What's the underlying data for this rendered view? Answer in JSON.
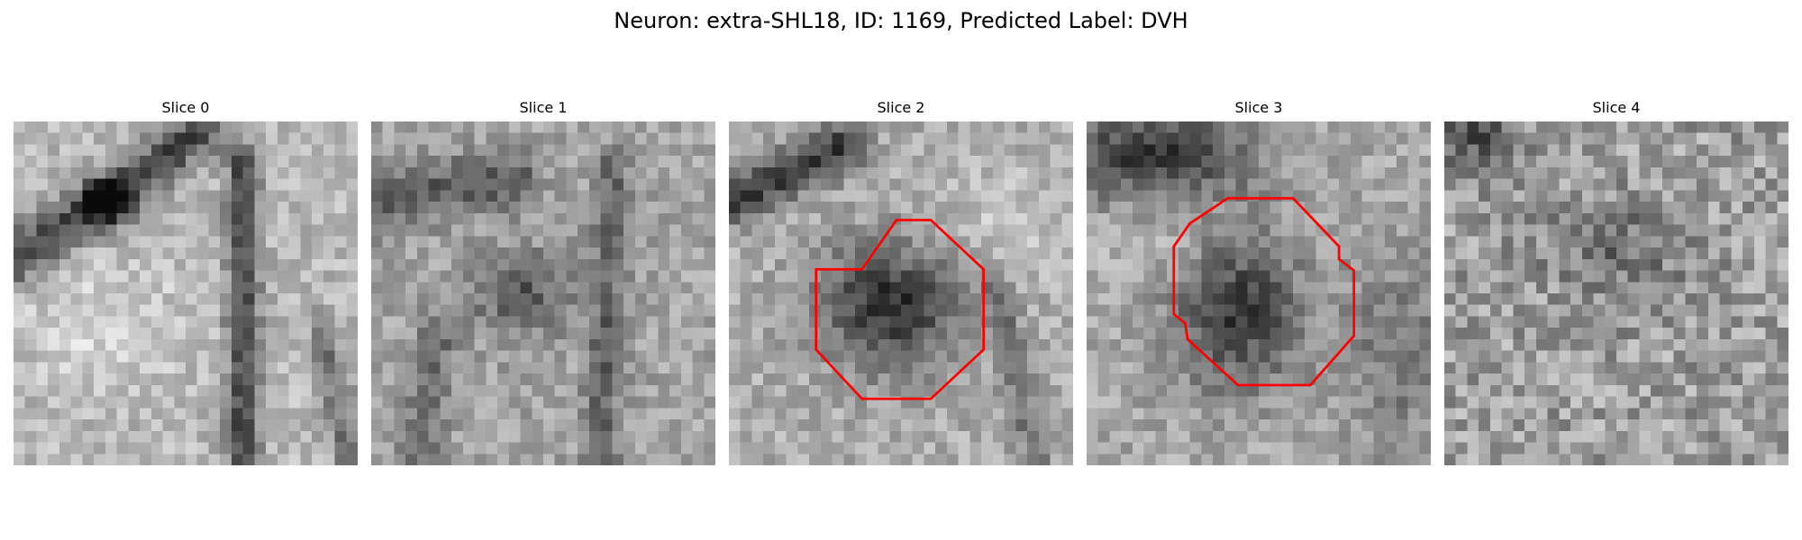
{
  "figure": {
    "title": "Neuron: extra-SHL18, ID: 1169, Predicted Label: DVH",
    "outline_color": "#ff0000"
  },
  "slices": [
    {
      "title": "Slice 0",
      "has_outline": false
    },
    {
      "title": "Slice 1",
      "has_outline": false
    },
    {
      "title": "Slice 2",
      "has_outline": true
    },
    {
      "title": "Slice 3",
      "has_outline": true
    },
    {
      "title": "Slice 4",
      "has_outline": false
    }
  ]
}
